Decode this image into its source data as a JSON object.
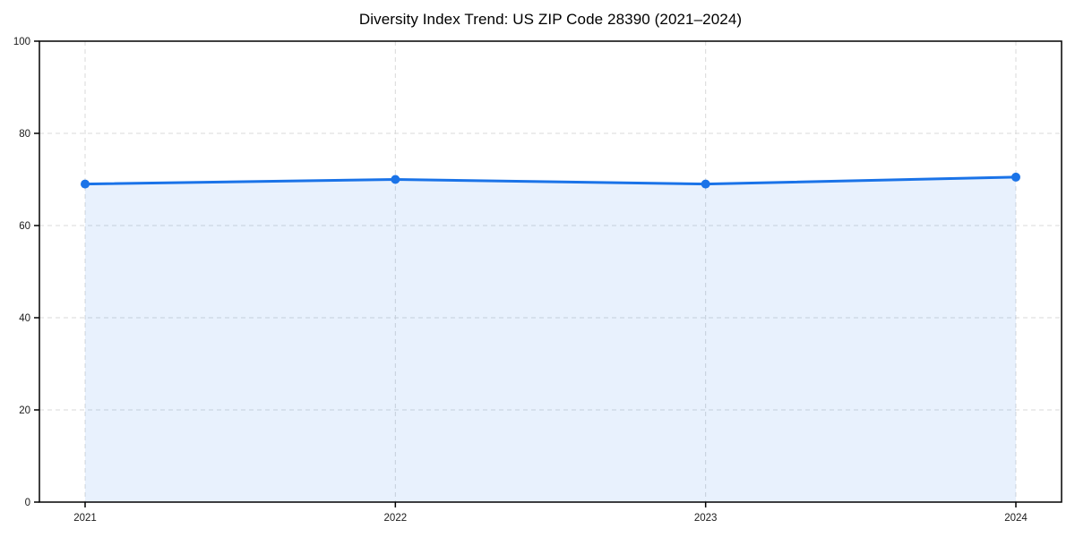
{
  "chart_data": {
    "type": "area",
    "title": "Diversity Index Trend: US ZIP Code 28390 (2021–2024)",
    "categories": [
      "2021",
      "2022",
      "2023",
      "2024"
    ],
    "series": [
      {
        "name": "Diversity Index",
        "values": [
          69,
          70,
          69,
          70.5
        ]
      }
    ],
    "xlabel": "",
    "ylabel": "",
    "ylim": [
      0,
      100
    ],
    "yticks": [
      0,
      20,
      40,
      60,
      80,
      100
    ],
    "grid": true,
    "grid_style": "dashed",
    "legend": "none",
    "marker": "circle",
    "colors": {
      "line": "#1a73e8",
      "fill": "rgba(26,115,232,0.10)",
      "grid": "#d9d9d9",
      "spine": "#000000",
      "tick_text": "#1a1a1a",
      "background": "#ffffff"
    }
  }
}
